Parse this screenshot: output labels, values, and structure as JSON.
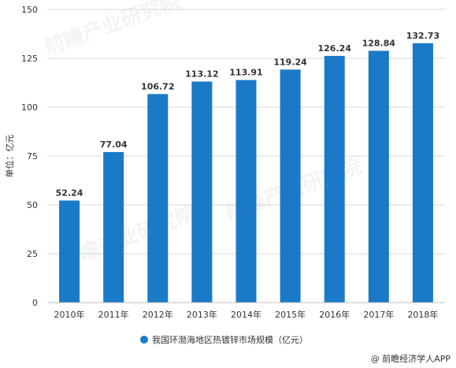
{
  "chart_data": {
    "type": "bar",
    "categories": [
      "2010年",
      "2011年",
      "2012年",
      "2013年",
      "2014年",
      "2015年",
      "2016年",
      "2017年",
      "2018年"
    ],
    "values": [
      52.24,
      77.04,
      106.72,
      113.12,
      113.91,
      119.24,
      126.24,
      128.84,
      132.73
    ],
    "data_labels": [
      "52.24",
      "77.04",
      "106.72",
      "113.12",
      "113.91",
      "119.24",
      "126.24",
      "128.84",
      "132.73"
    ],
    "ylabel": "单位：亿元",
    "ylim": [
      0,
      150
    ],
    "yticks": [
      0,
      25,
      50,
      75,
      100,
      125,
      150
    ],
    "grid": true,
    "legend": {
      "placement": "bottom",
      "entries": [
        "我国环渤海地区热镀锌市场规模（亿元）"
      ]
    },
    "color": "#1a7ac7"
  },
  "source": "@ 前瞻经济学人APP",
  "watermark": "前瞻产业研究院"
}
